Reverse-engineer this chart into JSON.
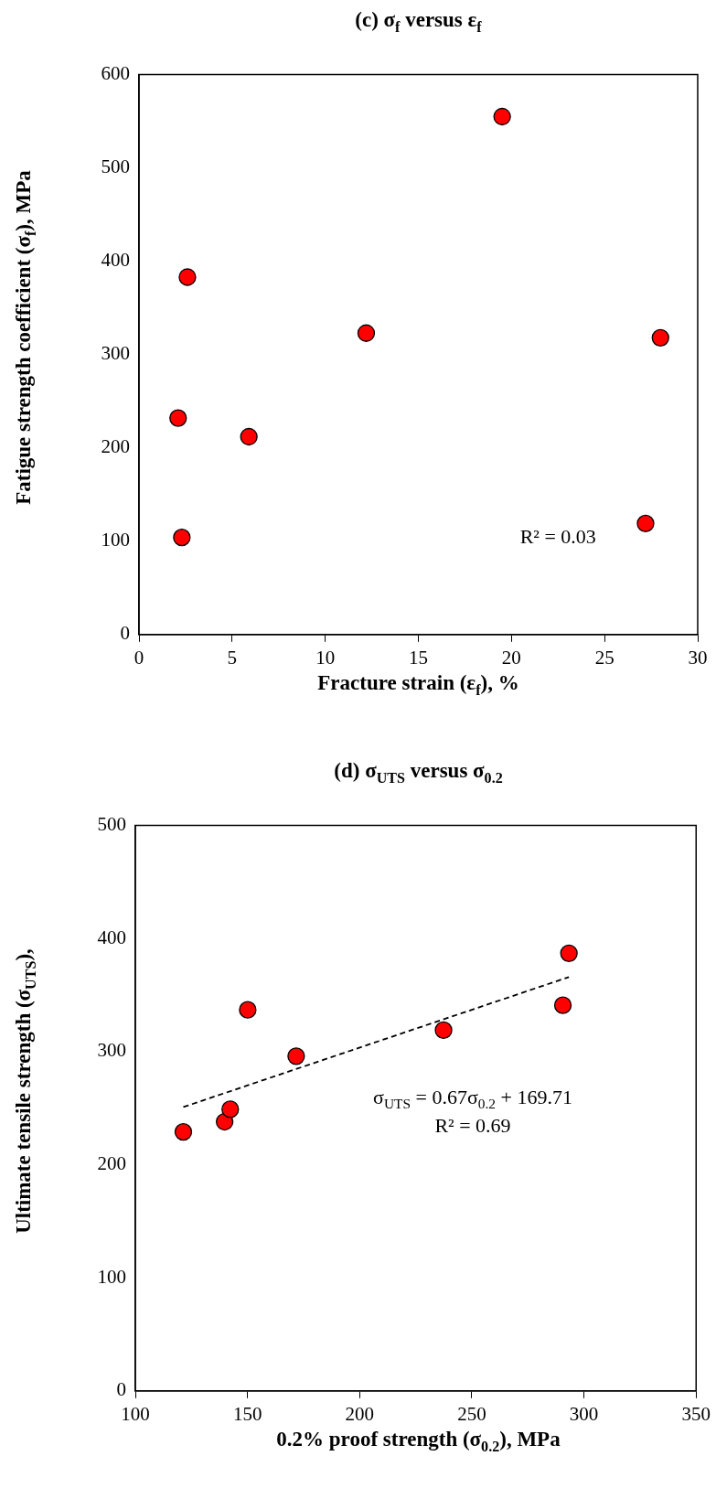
{
  "chart_data": [
    {
      "type": "scatter",
      "title": "(c) σ$_{f}$ versus ε$_{f}$",
      "xlabel": "Fracture strain (ε$_{f}$), %",
      "ylabel": "Fatigue strength coefficient (σ$_{f}$), MPa",
      "series": [
        {
          "color": "#ff0000",
          "x": [
            2.1,
            2.6,
            2.3,
            5.9,
            12.2,
            19.5,
            28.0,
            27.2
          ],
          "values": [
            232,
            383,
            104,
            212,
            323,
            555,
            318,
            119
          ]
        }
      ],
      "xlim": [
        0,
        30
      ],
      "xticks": [
        0,
        5,
        10,
        15,
        20,
        25,
        30
      ],
      "ylim": [
        0,
        600
      ],
      "yticks": [
        0,
        100,
        200,
        300,
        400,
        500,
        600
      ],
      "annotations": [
        "R² = 0.03"
      ],
      "marker": "circle",
      "grid": false,
      "legend": false
    },
    {
      "type": "scatter",
      "title": "(d) σ$_{UTS}$ versus σ$_{0.2}$",
      "xlabel": "0.2% proof strength (σ$_{0.2}$), MPa",
      "ylabel": "Ultimate tensile strength (σ$_{UTS}$),",
      "series": [
        {
          "color": "#ff0000",
          "x": [
            121.4,
            139.8,
            142.3,
            150.1,
            171.7,
            237.4,
            290.6,
            293.3
          ],
          "values": [
            229,
            238,
            249,
            337,
            296,
            319,
            341,
            387
          ]
        },
        {
          "type": "line",
          "color": "#000000",
          "line_style": "dashed",
          "marker": "none",
          "x": [
            121.4,
            293.3
          ],
          "values": [
            251,
            366
          ]
        }
      ],
      "xlim": [
        100,
        350
      ],
      "xticks": [
        100,
        150,
        200,
        250,
        300,
        350
      ],
      "ylim": [
        0,
        500
      ],
      "yticks": [
        0,
        100,
        200,
        300,
        400,
        500
      ],
      "annotations": [
        "σ$_{UTS}$ = 0.67σ$_{0.2}$ + 169.71",
        "R² = 0.69"
      ],
      "marker": "circle",
      "grid": false,
      "legend": false
    }
  ]
}
